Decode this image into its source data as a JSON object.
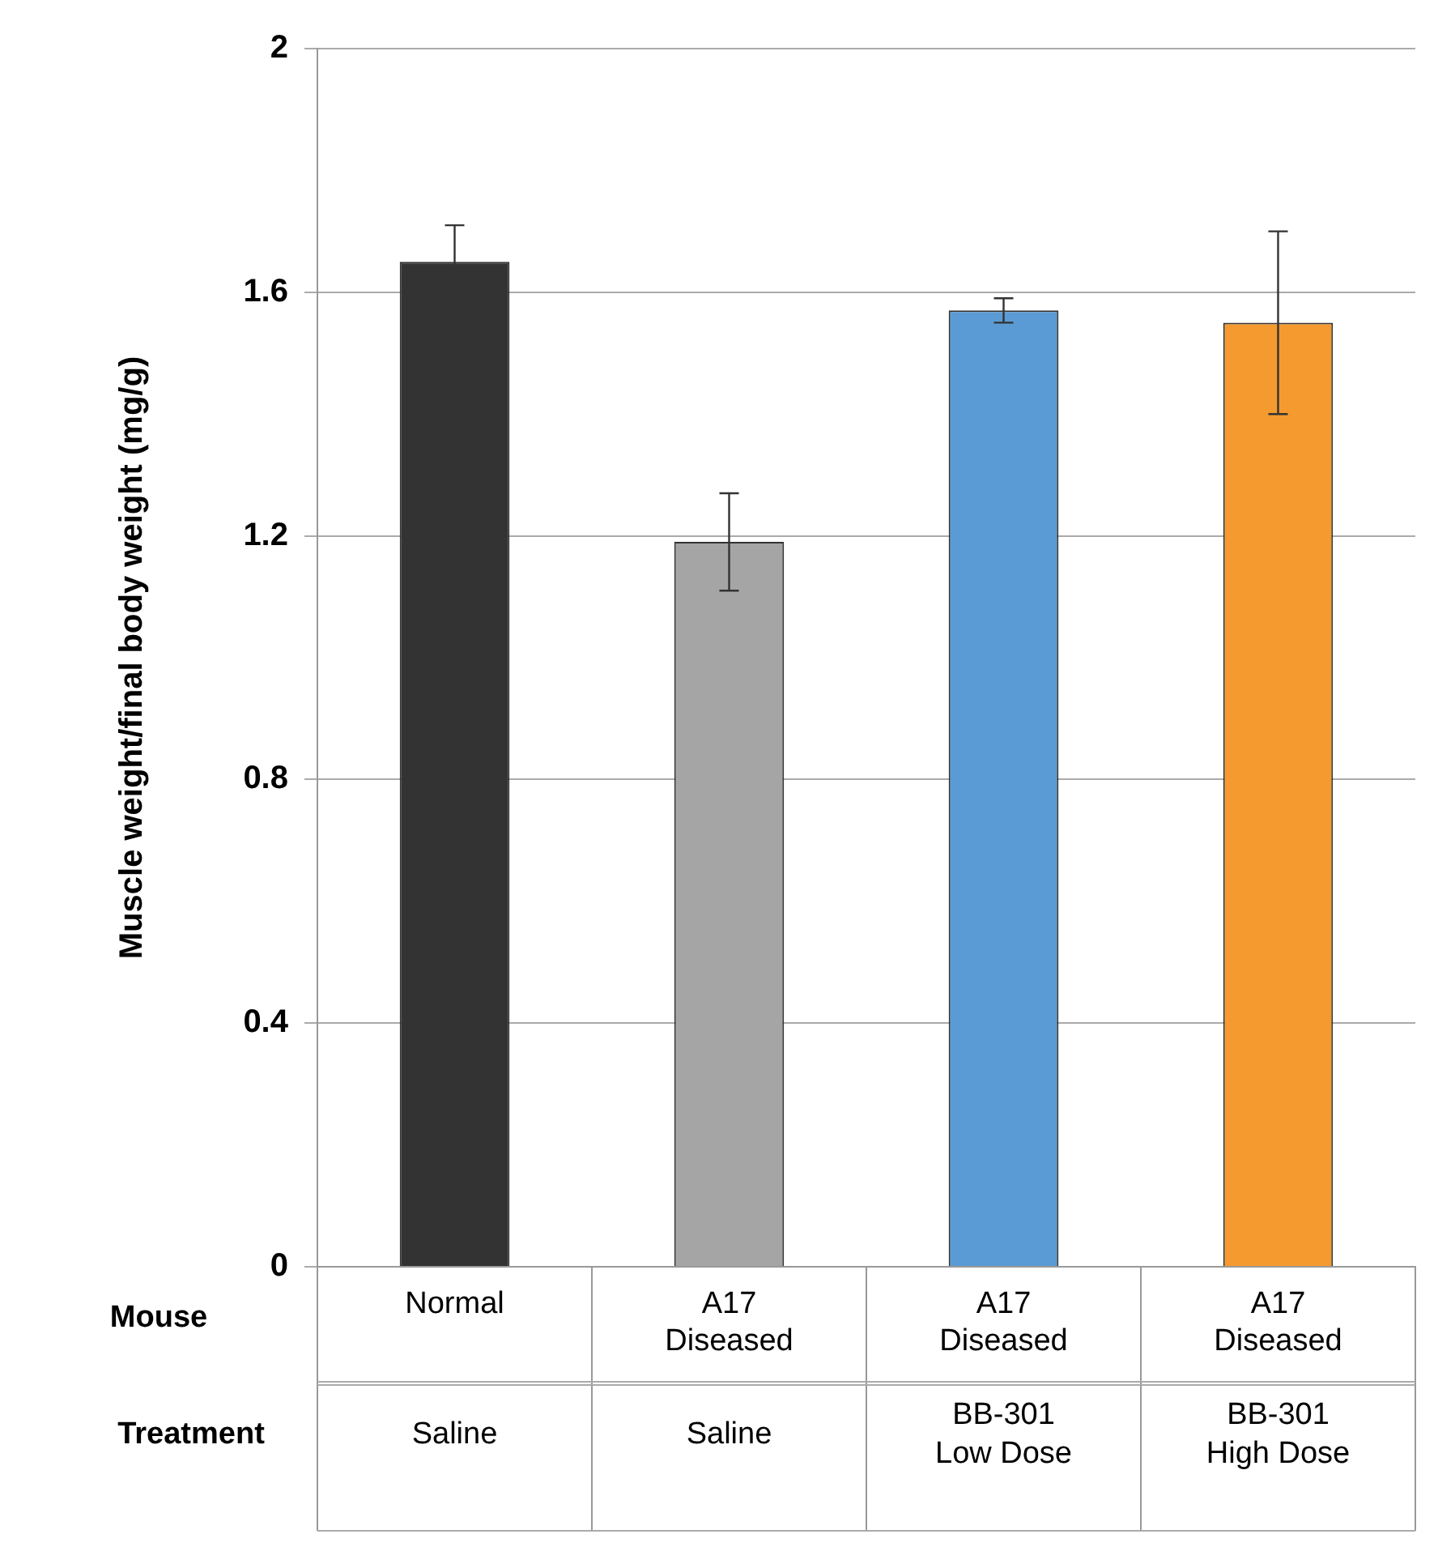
{
  "chart_data": {
    "type": "bar",
    "ylabel": "Muscle weight/final body weight (mg/g)",
    "categories": [
      "Normal",
      "A17 Diseased",
      "A17 Diseased",
      "A17 Diseased"
    ],
    "values": [
      1.65,
      1.19,
      1.57,
      1.55
    ],
    "colors": [
      "#333333",
      "#a5a5a5",
      "#5b9bd5",
      "#f59a2e"
    ],
    "errors": [
      0.06,
      0.08,
      0.02,
      0.15
    ],
    "ylim": [
      0,
      2
    ],
    "yticks": [
      0,
      0.4,
      0.8,
      1.2,
      1.6,
      2
    ],
    "grid": "y",
    "annotations": [
      "Mouse",
      "Treatment",
      "Saline",
      "Saline",
      "BB-301 Low Dose",
      "BB-301 High Dose"
    ]
  }
}
